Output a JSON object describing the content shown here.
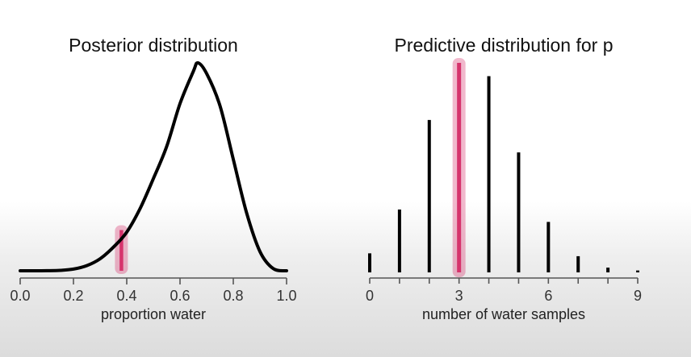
{
  "chart_data": [
    {
      "type": "line",
      "title": "Posterior distribution",
      "xlabel": "proportion water",
      "ylabel": "",
      "xlim": [
        0,
        1
      ],
      "x_ticks": [
        "0.0",
        "0.2",
        "0.4",
        "0.6",
        "0.8",
        "1.0"
      ],
      "x": [
        0,
        0.05,
        0.1,
        0.15,
        0.2,
        0.25,
        0.3,
        0.35,
        0.4,
        0.45,
        0.5,
        0.55,
        0.6,
        0.65,
        0.667,
        0.7,
        0.75,
        0.8,
        0.85,
        0.9,
        0.95,
        1.0
      ],
      "y": [
        0,
        2e-05,
        0.0004,
        0.002,
        0.008,
        0.024,
        0.056,
        0.11,
        0.18,
        0.29,
        0.43,
        0.58,
        0.78,
        0.93,
        0.97,
        0.92,
        0.77,
        0.52,
        0.27,
        0.09,
        0.01,
        0
      ],
      "highlight": {
        "x": 0.38,
        "y": 0.19,
        "color": "#d6336c"
      },
      "grid": false
    },
    {
      "type": "bar",
      "title": "Predictive distribution for p",
      "xlabel": "number of water samples",
      "ylabel": "",
      "categories": [
        0,
        1,
        2,
        3,
        4,
        5,
        6,
        7,
        8,
        9
      ],
      "x_ticks": [
        "0",
        "3",
        "6",
        "9"
      ],
      "values": [
        0.2,
        0.66,
        1.6,
        2.2,
        2.06,
        1.26,
        0.53,
        0.17,
        0.05,
        0.02
      ],
      "highlight": {
        "category": 3,
        "color": "#d6336c"
      },
      "grid": false
    }
  ]
}
